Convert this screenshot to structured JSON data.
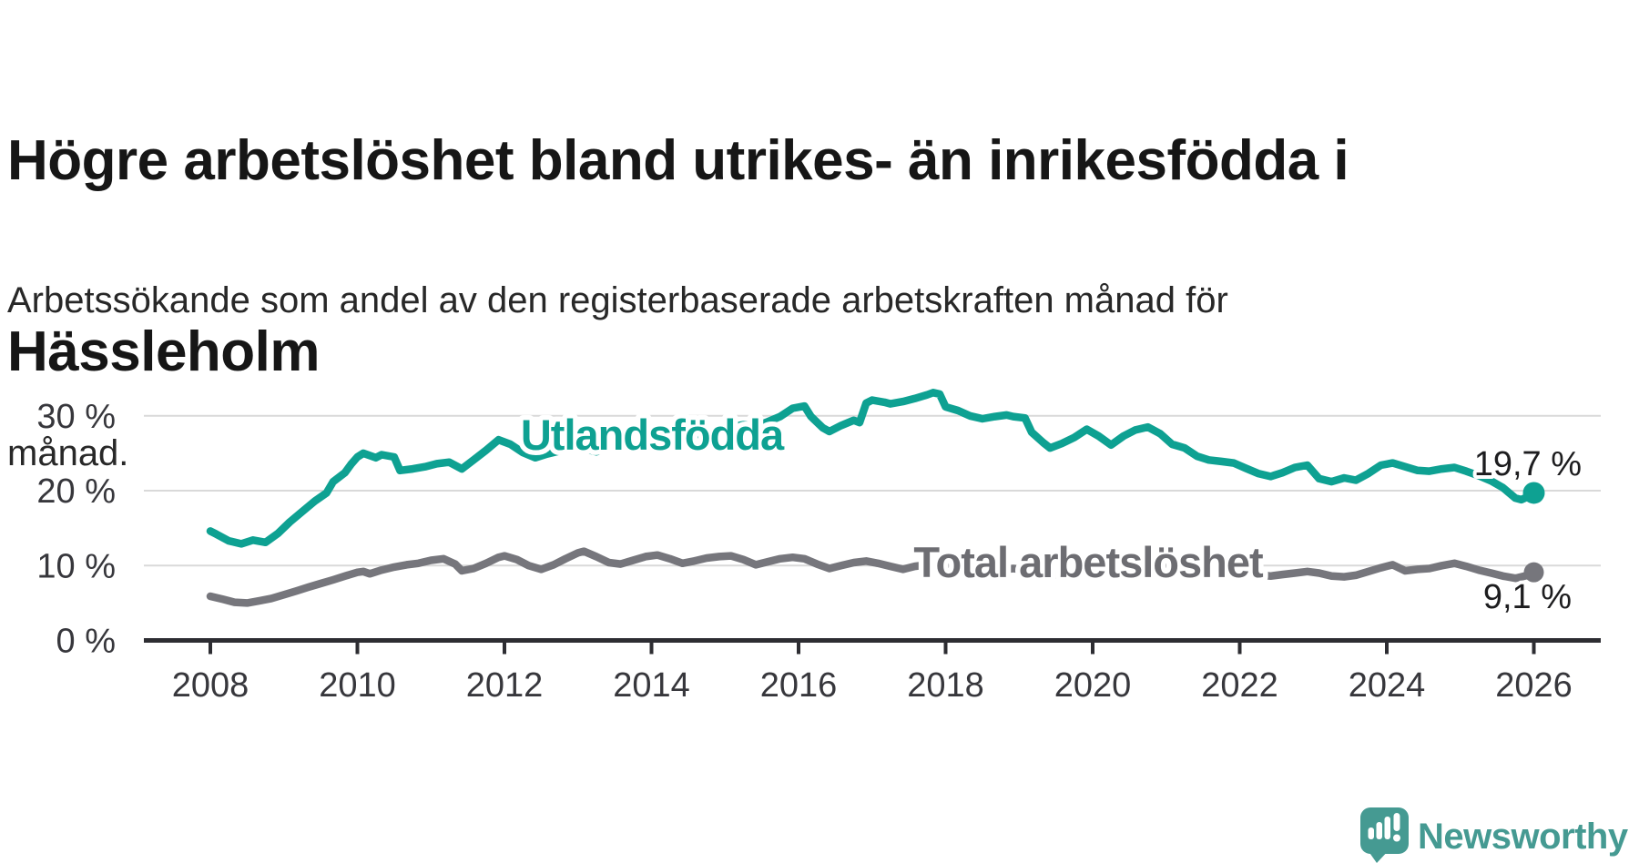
{
  "title_lines": [
    "Högre arbetslöshet bland utrikes- än inrikesfödda i",
    "Hässleholm"
  ],
  "subtitle_lines": [
    "Arbetssökande som andel av den registerbaserade arbetskraften månad för",
    "månad."
  ],
  "footer": {
    "brand": "Newsworthy",
    "logo_icon": "speech-bubble-bar-chart-icon"
  },
  "colors": {
    "series_teal": "#0ea192",
    "series_gray": "#76767c",
    "grid": "#d9d9d9",
    "axis": "#2d2d32",
    "axis_text": "#37373c",
    "value_text": "#1d1d1f",
    "brand_teal": "#459a92",
    "background": "#ffffff"
  },
  "chart_data": {
    "type": "line",
    "title": "Högre arbetslöshet bland utrikes- än inrikesfödda i Hässleholm",
    "subtitle": "Arbetssökande som andel av den registerbaserade arbetskraften månad för månad.",
    "xlabel": "",
    "ylabel": "",
    "unit": "%",
    "grid": "horizontal",
    "legend_position": "inline-labels",
    "xlim": [
      2007.1,
      2026.9
    ],
    "ylim": [
      0,
      35.5
    ],
    "x_ticks": [
      2008,
      2010,
      2012,
      2014,
      2016,
      2018,
      2020,
      2022,
      2024,
      2026
    ],
    "y_tick_values": [
      30,
      20,
      10,
      0
    ],
    "y_tick_labels": [
      "30 %",
      "20 %",
      "10 %",
      "0 %"
    ],
    "series": [
      {
        "name": "Utlandsfödda",
        "color": "#0ea192",
        "end_value": 19.7,
        "end_label": "19,7 %",
        "points": [
          [
            2008.0,
            14.6
          ],
          [
            2008.08,
            14.2
          ],
          [
            2008.25,
            13.3
          ],
          [
            2008.42,
            12.9
          ],
          [
            2008.58,
            13.4
          ],
          [
            2008.75,
            13.1
          ],
          [
            2008.92,
            14.3
          ],
          [
            2009.08,
            15.8
          ],
          [
            2009.25,
            17.2
          ],
          [
            2009.42,
            18.6
          ],
          [
            2009.58,
            19.7
          ],
          [
            2009.67,
            21.2
          ],
          [
            2009.83,
            22.4
          ],
          [
            2009.92,
            23.6
          ],
          [
            2010.0,
            24.5
          ],
          [
            2010.08,
            25.0
          ],
          [
            2010.25,
            24.4
          ],
          [
            2010.33,
            24.8
          ],
          [
            2010.5,
            24.5
          ],
          [
            2010.58,
            22.7
          ],
          [
            2010.75,
            22.9
          ],
          [
            2010.92,
            23.2
          ],
          [
            2011.08,
            23.6
          ],
          [
            2011.25,
            23.8
          ],
          [
            2011.42,
            22.9
          ],
          [
            2011.58,
            24.1
          ],
          [
            2011.75,
            25.4
          ],
          [
            2011.92,
            26.8
          ],
          [
            2012.08,
            26.2
          ],
          [
            2012.25,
            25.1
          ],
          [
            2012.42,
            24.4
          ],
          [
            2012.58,
            24.9
          ],
          [
            2012.75,
            25.3
          ],
          [
            2012.92,
            25.7
          ],
          [
            2013.08,
            25.6
          ],
          [
            2013.25,
            25.2
          ],
          [
            2013.42,
            25.8
          ],
          [
            2013.58,
            26.1
          ],
          [
            2013.75,
            26.6
          ],
          [
            2013.92,
            27.0
          ],
          [
            2014.08,
            27.2
          ],
          [
            2014.25,
            27.5
          ],
          [
            2014.42,
            27.1
          ],
          [
            2014.58,
            27.4
          ],
          [
            2014.75,
            27.9
          ],
          [
            2014.92,
            28.2
          ],
          [
            2015.08,
            28.5
          ],
          [
            2015.25,
            28.8
          ],
          [
            2015.42,
            28.6
          ],
          [
            2015.58,
            29.2
          ],
          [
            2015.75,
            29.9
          ],
          [
            2015.92,
            31.0
          ],
          [
            2016.08,
            31.3
          ],
          [
            2016.17,
            29.9
          ],
          [
            2016.33,
            28.4
          ],
          [
            2016.42,
            27.9
          ],
          [
            2016.58,
            28.7
          ],
          [
            2016.75,
            29.4
          ],
          [
            2016.83,
            29.1
          ],
          [
            2016.92,
            31.7
          ],
          [
            2017.0,
            32.1
          ],
          [
            2017.17,
            31.8
          ],
          [
            2017.25,
            31.6
          ],
          [
            2017.42,
            31.9
          ],
          [
            2017.58,
            32.3
          ],
          [
            2017.75,
            32.8
          ],
          [
            2017.83,
            33.1
          ],
          [
            2017.92,
            32.9
          ],
          [
            2018.0,
            31.2
          ],
          [
            2018.17,
            30.7
          ],
          [
            2018.33,
            30.0
          ],
          [
            2018.5,
            29.6
          ],
          [
            2018.67,
            29.9
          ],
          [
            2018.83,
            30.1
          ],
          [
            2018.92,
            29.9
          ],
          [
            2019.08,
            29.7
          ],
          [
            2019.17,
            27.8
          ],
          [
            2019.33,
            26.4
          ],
          [
            2019.42,
            25.7
          ],
          [
            2019.58,
            26.3
          ],
          [
            2019.75,
            27.1
          ],
          [
            2019.92,
            28.2
          ],
          [
            2020.08,
            27.3
          ],
          [
            2020.25,
            26.1
          ],
          [
            2020.42,
            27.3
          ],
          [
            2020.58,
            28.1
          ],
          [
            2020.75,
            28.5
          ],
          [
            2020.92,
            27.6
          ],
          [
            2021.08,
            26.2
          ],
          [
            2021.25,
            25.7
          ],
          [
            2021.42,
            24.6
          ],
          [
            2021.58,
            24.1
          ],
          [
            2021.75,
            23.9
          ],
          [
            2021.92,
            23.7
          ],
          [
            2022.08,
            23.0
          ],
          [
            2022.25,
            22.3
          ],
          [
            2022.42,
            21.9
          ],
          [
            2022.58,
            22.4
          ],
          [
            2022.75,
            23.1
          ],
          [
            2022.92,
            23.4
          ],
          [
            2023.08,
            21.6
          ],
          [
            2023.25,
            21.2
          ],
          [
            2023.42,
            21.7
          ],
          [
            2023.58,
            21.4
          ],
          [
            2023.75,
            22.3
          ],
          [
            2023.92,
            23.4
          ],
          [
            2024.08,
            23.7
          ],
          [
            2024.25,
            23.2
          ],
          [
            2024.42,
            22.7
          ],
          [
            2024.58,
            22.6
          ],
          [
            2024.75,
            22.9
          ],
          [
            2024.92,
            23.1
          ],
          [
            2025.08,
            22.6
          ],
          [
            2025.25,
            22.0
          ],
          [
            2025.42,
            21.3
          ],
          [
            2025.58,
            20.4
          ],
          [
            2025.75,
            19.0
          ],
          [
            2025.83,
            18.8
          ],
          [
            2025.92,
            19.2
          ],
          [
            2026.0,
            19.7
          ]
        ]
      },
      {
        "name": "Total arbetslöshet",
        "color": "#76767c",
        "end_value": 9.1,
        "end_label": "9,1 %",
        "points": [
          [
            2008.0,
            5.9
          ],
          [
            2008.17,
            5.5
          ],
          [
            2008.33,
            5.1
          ],
          [
            2008.5,
            5.0
          ],
          [
            2008.67,
            5.3
          ],
          [
            2008.83,
            5.6
          ],
          [
            2009.0,
            6.1
          ],
          [
            2009.17,
            6.6
          ],
          [
            2009.33,
            7.1
          ],
          [
            2009.5,
            7.6
          ],
          [
            2009.67,
            8.1
          ],
          [
            2009.83,
            8.6
          ],
          [
            2010.0,
            9.1
          ],
          [
            2010.08,
            9.2
          ],
          [
            2010.17,
            8.9
          ],
          [
            2010.33,
            9.4
          ],
          [
            2010.5,
            9.8
          ],
          [
            2010.67,
            10.1
          ],
          [
            2010.83,
            10.3
          ],
          [
            2011.0,
            10.7
          ],
          [
            2011.17,
            10.9
          ],
          [
            2011.33,
            10.2
          ],
          [
            2011.42,
            9.3
          ],
          [
            2011.58,
            9.6
          ],
          [
            2011.75,
            10.3
          ],
          [
            2011.92,
            11.1
          ],
          [
            2012.0,
            11.3
          ],
          [
            2012.17,
            10.8
          ],
          [
            2012.33,
            10.0
          ],
          [
            2012.5,
            9.5
          ],
          [
            2012.67,
            10.1
          ],
          [
            2012.83,
            10.9
          ],
          [
            2013.0,
            11.7
          ],
          [
            2013.08,
            11.9
          ],
          [
            2013.25,
            11.2
          ],
          [
            2013.42,
            10.4
          ],
          [
            2013.58,
            10.2
          ],
          [
            2013.75,
            10.7
          ],
          [
            2013.92,
            11.2
          ],
          [
            2014.08,
            11.4
          ],
          [
            2014.25,
            10.9
          ],
          [
            2014.42,
            10.3
          ],
          [
            2014.58,
            10.6
          ],
          [
            2014.75,
            11.0
          ],
          [
            2014.92,
            11.2
          ],
          [
            2015.08,
            11.3
          ],
          [
            2015.25,
            10.8
          ],
          [
            2015.42,
            10.1
          ],
          [
            2015.58,
            10.5
          ],
          [
            2015.75,
            10.9
          ],
          [
            2015.92,
            11.1
          ],
          [
            2016.08,
            10.9
          ],
          [
            2016.25,
            10.2
          ],
          [
            2016.42,
            9.6
          ],
          [
            2016.58,
            10.0
          ],
          [
            2016.75,
            10.4
          ],
          [
            2016.92,
            10.6
          ],
          [
            2017.08,
            10.3
          ],
          [
            2017.25,
            9.9
          ],
          [
            2017.42,
            9.5
          ],
          [
            2017.58,
            9.9
          ],
          [
            2017.75,
            10.1
          ],
          [
            2017.92,
            10.2
          ],
          [
            2018.08,
            10.0
          ],
          [
            2018.25,
            9.5
          ],
          [
            2018.42,
            9.0
          ],
          [
            2018.58,
            9.2
          ],
          [
            2018.75,
            9.4
          ],
          [
            2018.92,
            9.6
          ],
          [
            2019.08,
            9.4
          ],
          [
            2019.25,
            9.0
          ],
          [
            2019.42,
            8.7
          ],
          [
            2019.58,
            8.9
          ],
          [
            2019.75,
            9.1
          ],
          [
            2019.92,
            9.3
          ],
          [
            2020.08,
            9.5
          ],
          [
            2020.25,
            9.9
          ],
          [
            2020.42,
            10.4
          ],
          [
            2020.58,
            10.6
          ],
          [
            2020.75,
            10.5
          ],
          [
            2020.92,
            10.3
          ],
          [
            2021.08,
            10.1
          ],
          [
            2021.25,
            9.8
          ],
          [
            2021.42,
            9.5
          ],
          [
            2021.58,
            9.6
          ],
          [
            2021.75,
            9.6
          ],
          [
            2021.92,
            9.5
          ],
          [
            2022.08,
            9.2
          ],
          [
            2022.25,
            8.8
          ],
          [
            2022.42,
            8.6
          ],
          [
            2022.58,
            8.8
          ],
          [
            2022.75,
            9.0
          ],
          [
            2022.92,
            9.2
          ],
          [
            2023.08,
            9.0
          ],
          [
            2023.25,
            8.6
          ],
          [
            2023.42,
            8.5
          ],
          [
            2023.58,
            8.7
          ],
          [
            2023.75,
            9.2
          ],
          [
            2023.92,
            9.7
          ],
          [
            2024.08,
            10.1
          ],
          [
            2024.25,
            9.3
          ],
          [
            2024.42,
            9.5
          ],
          [
            2024.58,
            9.6
          ],
          [
            2024.75,
            10.0
          ],
          [
            2024.92,
            10.3
          ],
          [
            2025.08,
            9.9
          ],
          [
            2025.25,
            9.4
          ],
          [
            2025.42,
            9.0
          ],
          [
            2025.58,
            8.6
          ],
          [
            2025.75,
            8.3
          ],
          [
            2025.92,
            8.7
          ],
          [
            2026.0,
            9.1
          ]
        ]
      }
    ]
  }
}
